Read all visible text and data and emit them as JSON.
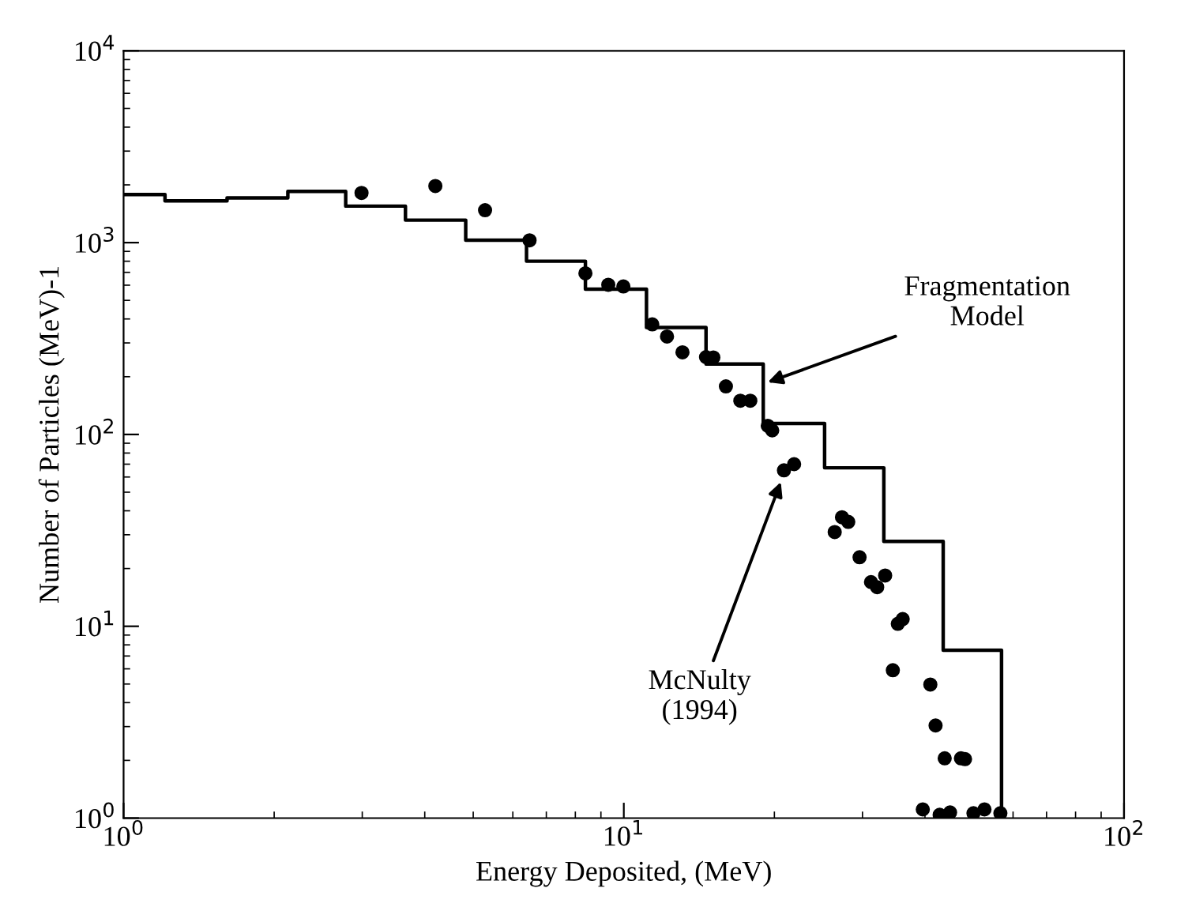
{
  "chart_data": {
    "type": "step",
    "xlabel": "Energy Deposited, (MeV)",
    "ylabel": "Number of Particles (MeV)-1",
    "log": "xy",
    "xlim": [
      1,
      100
    ],
    "ylim": [
      1,
      10000
    ],
    "xticks": [
      {
        "value": 1,
        "label": "10$^{0}$"
      },
      {
        "value": 10,
        "label": "10$^{1}$"
      },
      {
        "value": 100,
        "label": "10$^{2}$"
      }
    ],
    "yticks": [
      {
        "value": 1,
        "label": "10$^{0}$"
      },
      {
        "value": 10,
        "label": "10$^{1}$"
      },
      {
        "value": 100,
        "label": "10$^{2}$"
      },
      {
        "value": 1000,
        "label": "10$^{3}$"
      },
      {
        "value": 10000,
        "label": "10$^{4}$"
      }
    ],
    "grid": false,
    "series": [
      {
        "color": "#000000",
        "marker": "none",
        "line_style": "solid",
        "x": [
          1,
          1.21,
          1.61,
          2.13,
          2.78,
          3.66,
          4.83,
          6.39,
          8.38,
          11.1,
          14.6,
          19.0,
          25.2,
          33.1,
          43.5,
          56.9
        ],
        "values": [
          1780,
          1650,
          1710,
          1850,
          1550,
          1310,
          1030,
          800,
          572,
          361,
          233,
          114,
          67,
          27.7,
          7.5,
          1
        ]
      },
      {
        "type": "scatter",
        "color": "#000000",
        "marker": "circle",
        "x": [
          2.99,
          4.2,
          5.28,
          6.48,
          8.38,
          9.31,
          9.98,
          11.4,
          12.2,
          13.1,
          14.6,
          15.1,
          16.0,
          17.1,
          17.9,
          19.4,
          19.8,
          20.9,
          21.9,
          26.4,
          27.3,
          28.1,
          29.6,
          31.2,
          32.1,
          33.3,
          35.3,
          36.1,
          34.5,
          41.0,
          42.0,
          43.8,
          47.2,
          48.1,
          39.6,
          42.8,
          44.9,
          50.0,
          52.6,
          56.6
        ],
        "values": [
          1816,
          1973,
          1475,
          1028,
          692,
          603,
          591,
          375,
          324,
          268,
          253,
          252,
          178,
          150,
          150,
          111,
          105,
          65,
          70,
          31,
          37,
          35,
          22.9,
          17.0,
          16.0,
          18.4,
          10.3,
          10.9,
          5.9,
          4.97,
          3.04,
          2.05,
          2.05,
          2.03,
          1.11,
          1.04,
          1.07,
          1.06,
          1.11,
          1.06
        ]
      }
    ],
    "annotations": [
      {
        "text": "Fragmentation\nModel",
        "x": 19.4,
        "y": 187
      },
      {
        "text": "McNulty\n(1994)",
        "x": 20.6,
        "y": 56.5
      }
    ]
  }
}
